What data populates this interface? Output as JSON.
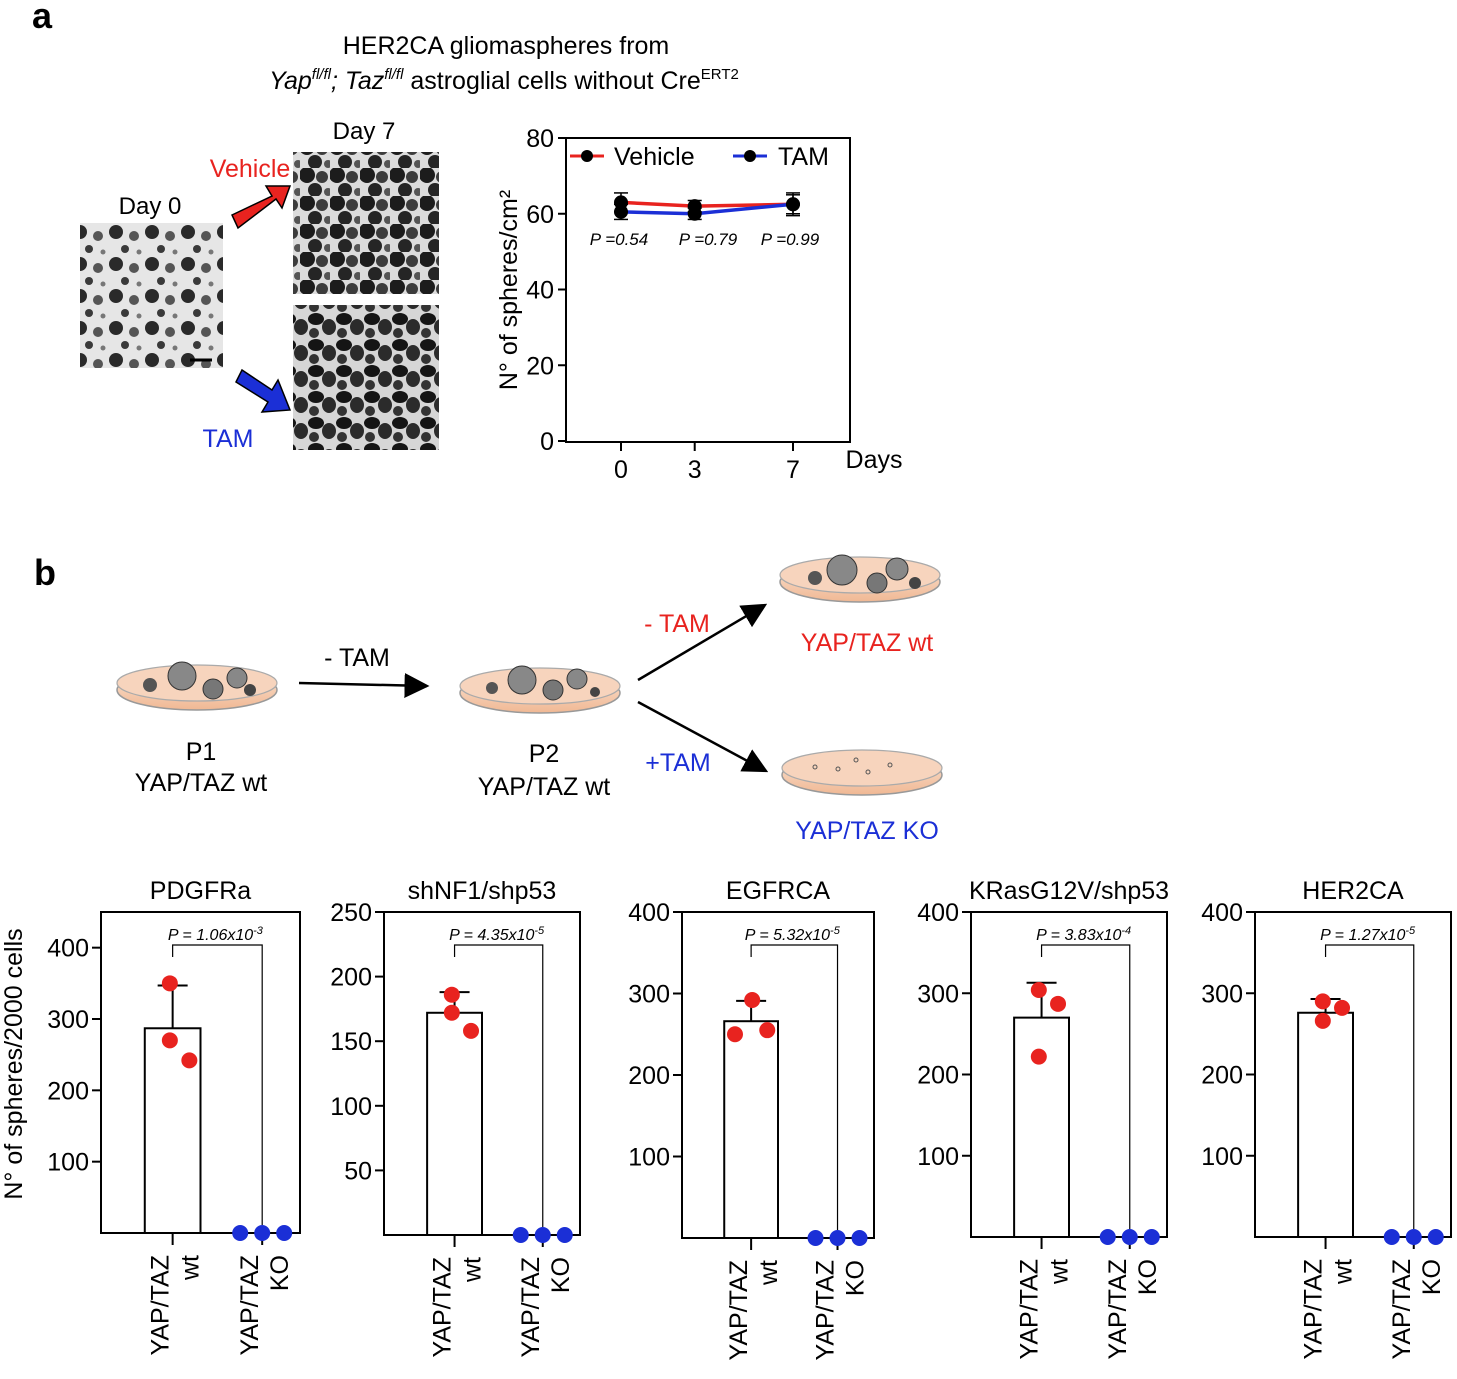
{
  "panel_a": {
    "label": "a",
    "title_line1": "HER2CA gliomaspheres from",
    "title_yap": "Yap",
    "title_yap_sup": "fl/fl",
    "title_sep": ";",
    "title_taz": "Taz",
    "title_taz_sup": "fl/fl",
    "title_rest": "astroglial cells without Cre",
    "title_cre_sup": "ERT2",
    "day0_label": "Day 0",
    "day7_label": "Day 7",
    "vehicle_label": "Vehicle",
    "tam_label": "TAM",
    "colors": {
      "vehicle": "#e8231f",
      "tam": "#1b2fd6"
    }
  },
  "panel_b": {
    "label": "b",
    "p1_line1": "P1",
    "p1_line2": "YAP/TAZ wt",
    "p2_line1": "P2",
    "p2_line2": "YAP/TAZ wt",
    "arrow1_label": "- TAM",
    "arrow_up_label": "- TAM",
    "arrow_down_label": "+TAM",
    "wt_label": "YAP/TAZ wt",
    "ko_label": "YAP/TAZ KO",
    "colors": {
      "wt": "#e8231f",
      "ko": "#1b2fd6"
    }
  },
  "chart_data": [
    {
      "type": "line",
      "title": "",
      "xlabel": "Days",
      "ylabel": "N° of spheres/cm²",
      "ylim": [
        0,
        80
      ],
      "yticks": [
        0,
        20,
        40,
        60,
        80
      ],
      "x": [
        0,
        3,
        7
      ],
      "series": [
        {
          "name": "Vehicle",
          "color": "#e8231f",
          "values": [
            63,
            62,
            62.5
          ],
          "errors": [
            2.5,
            1.5,
            3
          ]
        },
        {
          "name": "TAM",
          "color": "#1b2fd6",
          "values": [
            60.5,
            60,
            62.5
          ],
          "errors": [
            2,
            1.5,
            2.5
          ]
        }
      ],
      "pvalues": [
        "P =0.54",
        "P =0.79",
        "P =0.99"
      ]
    },
    {
      "type": "bar",
      "title": "PDGFRa",
      "ylabel": "N° of spheres/2000 cells",
      "ymax": 450,
      "yticks": [
        100,
        200,
        300,
        400
      ],
      "categories": [
        [
          "YAP/TAZ",
          "wt"
        ],
        [
          "YAP/TAZ",
          "KO"
        ]
      ],
      "values": [
        287,
        0
      ],
      "errors": [
        60,
        0
      ],
      "points": [
        [
          350,
          270,
          242
        ],
        [
          0,
          0,
          0
        ]
      ],
      "pvalue": "P = 1.06x10",
      "pvalue_exp": "-3"
    },
    {
      "type": "bar",
      "title": "shNF1/shp53",
      "ylabel": "",
      "ymax": 250,
      "yticks": [
        50,
        100,
        150,
        200,
        250
      ],
      "categories": [
        [
          "YAP/TAZ",
          "wt"
        ],
        [
          "YAP/TAZ",
          "KO"
        ]
      ],
      "values": [
        172,
        0
      ],
      "errors": [
        16,
        0
      ],
      "points": [
        [
          186,
          172,
          158
        ],
        [
          0,
          0,
          0
        ]
      ],
      "pvalue": "P = 4.35x10",
      "pvalue_exp": "-5"
    },
    {
      "type": "bar",
      "title": "EGFRCA",
      "ylabel": "",
      "ymax": 400,
      "yticks": [
        100,
        200,
        300,
        400
      ],
      "categories": [
        [
          "YAP/TAZ",
          "wt"
        ],
        [
          "YAP/TAZ",
          "KO"
        ]
      ],
      "values": [
        266,
        0
      ],
      "errors": [
        25,
        0
      ],
      "points": [
        [
          250,
          292,
          255
        ],
        [
          0,
          0,
          0
        ]
      ],
      "pvalue": "P = 5.32x10",
      "pvalue_exp": "-5"
    },
    {
      "type": "bar",
      "title": "KRasG12V/shp53",
      "ylabel": "",
      "ymax": 400,
      "yticks": [
        100,
        200,
        300,
        400
      ],
      "categories": [
        [
          "YAP/TAZ",
          "wt"
        ],
        [
          "YAP/TAZ",
          "KO"
        ]
      ],
      "values": [
        270,
        0
      ],
      "errors": [
        43,
        0
      ],
      "points": [
        [
          304,
          222,
          287
        ],
        [
          0,
          0,
          0
        ]
      ],
      "pvalue": "P = 3.83x10",
      "pvalue_exp": "-4"
    },
    {
      "type": "bar",
      "title": "HER2CA",
      "ylabel": "",
      "ymax": 400,
      "yticks": [
        100,
        200,
        300,
        400
      ],
      "categories": [
        [
          "YAP/TAZ",
          "wt"
        ],
        [
          "YAP/TAZ",
          "KO"
        ]
      ],
      "values": [
        276,
        0
      ],
      "errors": [
        17,
        0
      ],
      "points": [
        [
          290,
          266,
          282
        ],
        [
          0,
          0,
          0
        ]
      ],
      "pvalue": "P = 1.27x10",
      "pvalue_exp": "-5"
    }
  ]
}
